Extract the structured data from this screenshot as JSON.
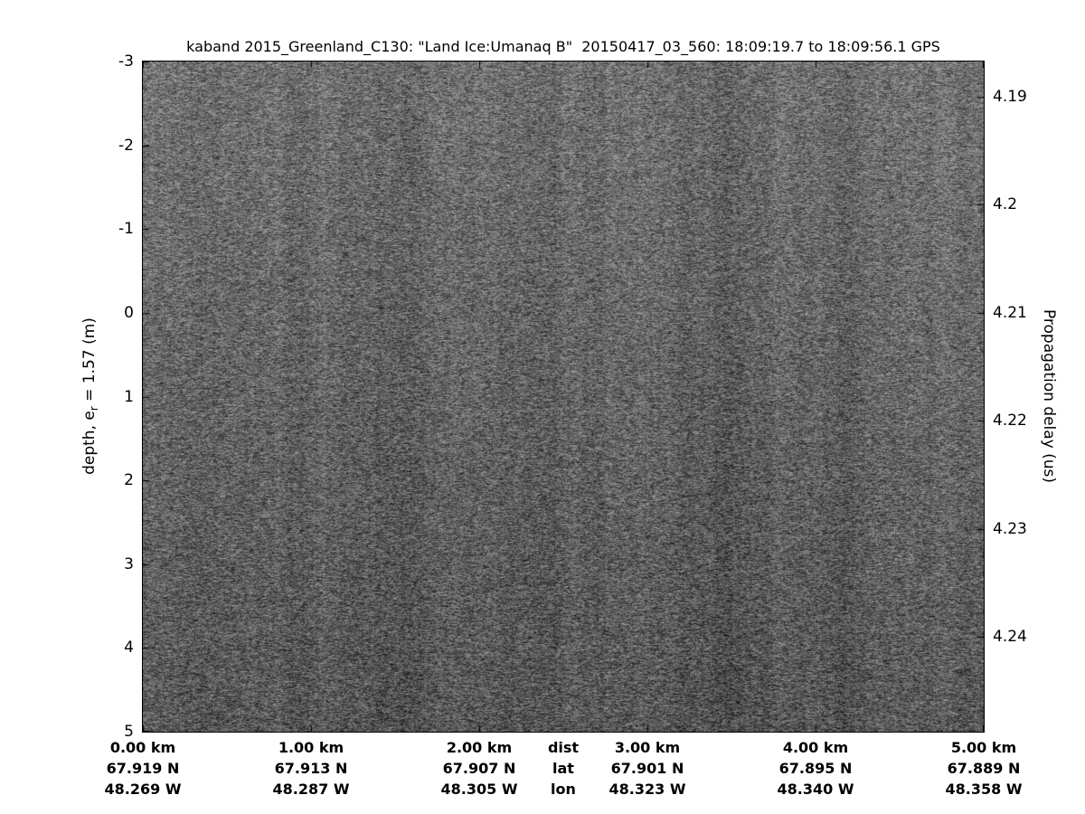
{
  "figure": {
    "title": "kaband 2015_Greenland_C130: \"Land Ice:Umanaq B\"  20150417_03_560: 18:09:19.7 to 18:09:56.1 GPS"
  },
  "chart_data": {
    "type": "heatmap",
    "title": "kaband 2015_Greenland_C130: \"Land Ice:Umanaq B\"  20150417_03_560: 18:09:19.7 to 18:09:56.1 GPS",
    "colormap": "gray",
    "grid": false,
    "content_note": "uniform radar speckle noise with faint vertical streaks, brighter at top, no distinct reflecting layers",
    "left_axis": {
      "label_pre": "depth, e",
      "label_sub": "r",
      "label_post": " = 1.57 (m)",
      "tick_labels": [
        "-3",
        "-2",
        "-1",
        "0",
        "1",
        "2",
        "3",
        "4",
        "5"
      ],
      "tick_values": [
        -3,
        -2,
        -1,
        0,
        1,
        2,
        3,
        4,
        5
      ],
      "range": [
        -3,
        5
      ]
    },
    "right_axis": {
      "label": "Propagation delay (us)",
      "tick_labels": [
        "4.19",
        "4.2",
        "4.21",
        "4.22",
        "4.23",
        "4.24"
      ],
      "tick_values": [
        4.19,
        4.2,
        4.21,
        4.22,
        4.23,
        4.24
      ]
    },
    "x_axis": {
      "range_km": [
        0,
        5
      ],
      "columns": [
        {
          "pos_km": 0.0,
          "km": "0.00 km",
          "lat": "67.919 N",
          "lon": "48.269 W"
        },
        {
          "pos_km": 1.0,
          "km": "1.00 km",
          "lat": "67.913 N",
          "lon": "48.287 W"
        },
        {
          "pos_km": 2.0,
          "km": "2.00 km",
          "lat": "67.907 N",
          "lon": "48.305 W"
        },
        {
          "pos_km": 2.5,
          "km": "dist",
          "lat": "lat",
          "lon": "lon"
        },
        {
          "pos_km": 3.0,
          "km": "3.00 km",
          "lat": "67.901 N",
          "lon": "48.323 W"
        },
        {
          "pos_km": 4.0,
          "km": "4.00 km",
          "lat": "67.895 N",
          "lon": "48.340 W"
        },
        {
          "pos_km": 5.0,
          "km": "5.00 km",
          "lat": "67.889 N",
          "lon": "48.358 W"
        }
      ]
    }
  }
}
